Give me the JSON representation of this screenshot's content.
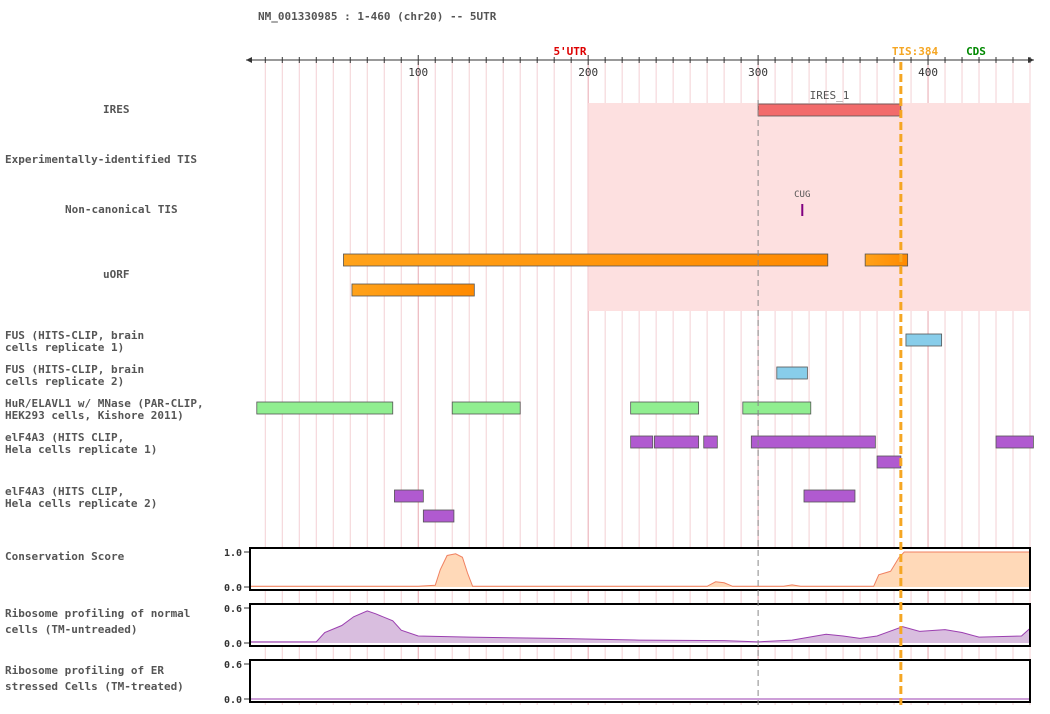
{
  "header": {
    "title": "NM_001330985 : 1-460 (chr20) -- 5UTR"
  },
  "ruler": {
    "start": 1,
    "end": 460,
    "ticks": [
      100,
      200,
      300,
      400
    ],
    "region_label": "5'UTR",
    "tis_label": "TIS:384",
    "tis_position": 384,
    "cds_label": "CDS",
    "marker_position": 300
  },
  "colors": {
    "ires": "#f26b6b",
    "uorf": "#ffa21a",
    "fus": "#88cdea",
    "hur": "#90ee90",
    "eif4a3": "#b05ad0",
    "highlight": "#fde0e0",
    "tis": "#f5a623",
    "utr_label": "#dd0000",
    "cds_label": "#008800",
    "conservation_fill": "#ffd9b8",
    "conservation_line": "#f08060",
    "ribo_fill": "#d9bedf",
    "ribo_line": "#9b3fb0",
    "cug": "#800080"
  },
  "highlight_region": {
    "start": 200,
    "end": 460
  },
  "tracks": [
    {
      "id": "ires",
      "label_lines": [
        "IRES"
      ],
      "features": [
        {
          "start": 300,
          "end": 384,
          "label": "IRES_1",
          "color_key": "ires"
        }
      ]
    },
    {
      "id": "exp_tis",
      "label_lines": [
        "Experimentally-identified TIS"
      ],
      "features": []
    },
    {
      "id": "noncanonical_tis",
      "label_lines": [
        "Non-canonical TIS"
      ],
      "ticks": [
        {
          "pos": 326,
          "label": "CUG"
        }
      ]
    },
    {
      "id": "uorf",
      "label_lines": [
        "uORF"
      ],
      "features": [
        {
          "start": 56,
          "end": 341,
          "row": 0,
          "gradient_at": 200
        },
        {
          "start": 363,
          "end": 388,
          "row": 0,
          "gradient_at": 370
        },
        {
          "start": 61,
          "end": 133,
          "row": 1,
          "gradient_at": 200
        }
      ]
    },
    {
      "id": "fus1",
      "label_lines": [
        "FUS (HITS-CLIP, brain",
        "cells replicate 1)"
      ],
      "features": [
        {
          "start": 387,
          "end": 408
        }
      ]
    },
    {
      "id": "fus2",
      "label_lines": [
        "FUS (HITS-CLIP, brain",
        "cells replicate 2)"
      ],
      "features": [
        {
          "start": 311,
          "end": 329
        }
      ]
    },
    {
      "id": "hur",
      "label_lines": [
        "HuR/ELAVL1 w/ MNase (PAR-CLIP,",
        "HEK293 cells, Kishore 2011)"
      ],
      "features": [
        {
          "start": 5,
          "end": 85
        },
        {
          "start": 120,
          "end": 160
        },
        {
          "start": 225,
          "end": 265
        },
        {
          "start": 291,
          "end": 331
        }
      ]
    },
    {
      "id": "eif4a3_1",
      "label_lines": [
        "elF4A3 (HITS CLIP,",
        "Hela cells replicate 1)"
      ],
      "features": [
        {
          "start": 225,
          "end": 238,
          "row": 0
        },
        {
          "start": 239,
          "end": 265,
          "row": 0
        },
        {
          "start": 268,
          "end": 276,
          "row": 0
        },
        {
          "start": 296,
          "end": 369,
          "row": 0
        },
        {
          "start": 440,
          "end": 462,
          "row": 0
        },
        {
          "start": 370,
          "end": 384,
          "row": 1
        }
      ]
    },
    {
      "id": "eif4a3_2",
      "label_lines": [
        "elF4A3 (HITS CLIP,",
        "Hela cells replicate 2)"
      ],
      "features": [
        {
          "start": 86,
          "end": 103,
          "row": 0
        },
        {
          "start": 327,
          "end": 357,
          "row": 0
        },
        {
          "start": 103,
          "end": 121,
          "row": 1
        }
      ]
    }
  ],
  "plots": [
    {
      "id": "conservation",
      "label_lines": [
        "Conservation Score"
      ],
      "ymax_label": "1.0",
      "ymin_label": "0.0",
      "ymax": 1.0,
      "fill_key": "conservation_fill",
      "line_key": "conservation_line",
      "profile": [
        [
          1,
          0.02
        ],
        [
          100,
          0.02
        ],
        [
          110,
          0.05
        ],
        [
          113,
          0.5
        ],
        [
          117,
          0.9
        ],
        [
          122,
          0.95
        ],
        [
          126,
          0.85
        ],
        [
          129,
          0.4
        ],
        [
          132,
          0.02
        ],
        [
          270,
          0.02
        ],
        [
          275,
          0.15
        ],
        [
          280,
          0.12
        ],
        [
          285,
          0.02
        ],
        [
          315,
          0.02
        ],
        [
          320,
          0.06
        ],
        [
          325,
          0.02
        ],
        [
          368,
          0.02
        ],
        [
          371,
          0.35
        ],
        [
          378,
          0.45
        ],
        [
          383,
          0.85
        ],
        [
          386,
          1.0
        ],
        [
          460,
          1.0
        ]
      ]
    },
    {
      "id": "ribo_normal",
      "label_lines": [
        "Ribosome profiling of normal",
        "cells (TM-untreaded)"
      ],
      "ymax_label": "0.6",
      "ymin_label": "0.0",
      "ymax": 0.6,
      "fill_key": "ribo_fill",
      "line_key": "ribo_line",
      "profile": [
        [
          1,
          0.02
        ],
        [
          40,
          0.02
        ],
        [
          45,
          0.18
        ],
        [
          55,
          0.3
        ],
        [
          62,
          0.45
        ],
        [
          70,
          0.55
        ],
        [
          75,
          0.5
        ],
        [
          85,
          0.38
        ],
        [
          90,
          0.22
        ],
        [
          100,
          0.12
        ],
        [
          130,
          0.1
        ],
        [
          180,
          0.08
        ],
        [
          230,
          0.05
        ],
        [
          280,
          0.04
        ],
        [
          300,
          0.02
        ],
        [
          320,
          0.05
        ],
        [
          340,
          0.15
        ],
        [
          350,
          0.12
        ],
        [
          360,
          0.08
        ],
        [
          370,
          0.12
        ],
        [
          385,
          0.28
        ],
        [
          395,
          0.2
        ],
        [
          410,
          0.23
        ],
        [
          420,
          0.18
        ],
        [
          430,
          0.1
        ],
        [
          455,
          0.12
        ],
        [
          460,
          0.25
        ]
      ]
    },
    {
      "id": "ribo_er",
      "label_lines": [
        "Ribosome profiling of ER",
        "stressed Cells (TM-treated)"
      ],
      "ymax_label": "0.6",
      "ymin_label": "0.0",
      "ymax": 0.6,
      "fill_key": "ribo_fill",
      "line_key": "ribo_line",
      "profile": [
        [
          1,
          0.0
        ],
        [
          460,
          0.0
        ]
      ]
    }
  ]
}
